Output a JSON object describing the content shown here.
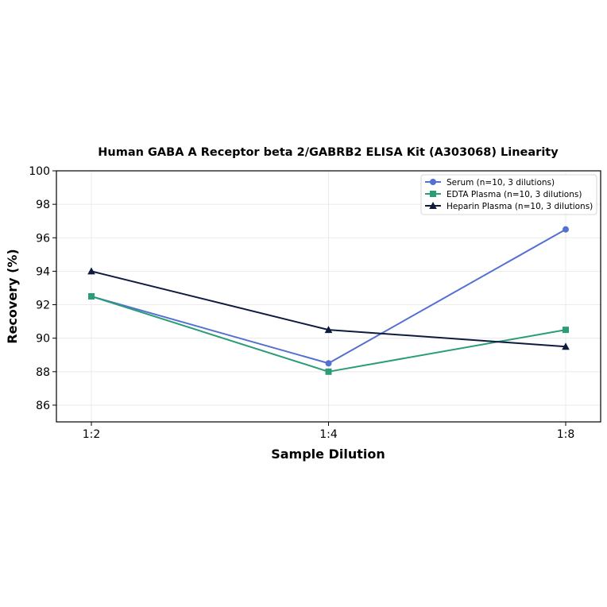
{
  "chart_data": {
    "type": "line",
    "title": "Human GABA A Receptor beta 2/GABRB2 ELISA Kit (A303068) Linearity",
    "xlabel": "Sample Dilution",
    "ylabel": "Recovery (%)",
    "categories": [
      "1:2",
      "1:4",
      "1:8"
    ],
    "ylim": [
      85,
      100
    ],
    "yticks": [
      86,
      88,
      90,
      92,
      94,
      96,
      98,
      100
    ],
    "grid": true,
    "legend_position": "top-right",
    "series": [
      {
        "name": "Serum (n=10, 3 dilutions)",
        "values": [
          92.5,
          88.5,
          96.5
        ],
        "color": "#5470d0",
        "marker": "circle"
      },
      {
        "name": "EDTA Plasma (n=10, 3 dilutions)",
        "values": [
          92.5,
          88.0,
          90.5
        ],
        "color": "#2a9d78",
        "marker": "square"
      },
      {
        "name": "Heparin Plasma (n=10, 3 dilutions)",
        "values": [
          94.0,
          90.5,
          89.5
        ],
        "color": "#0f1a40",
        "marker": "triangle"
      }
    ]
  }
}
